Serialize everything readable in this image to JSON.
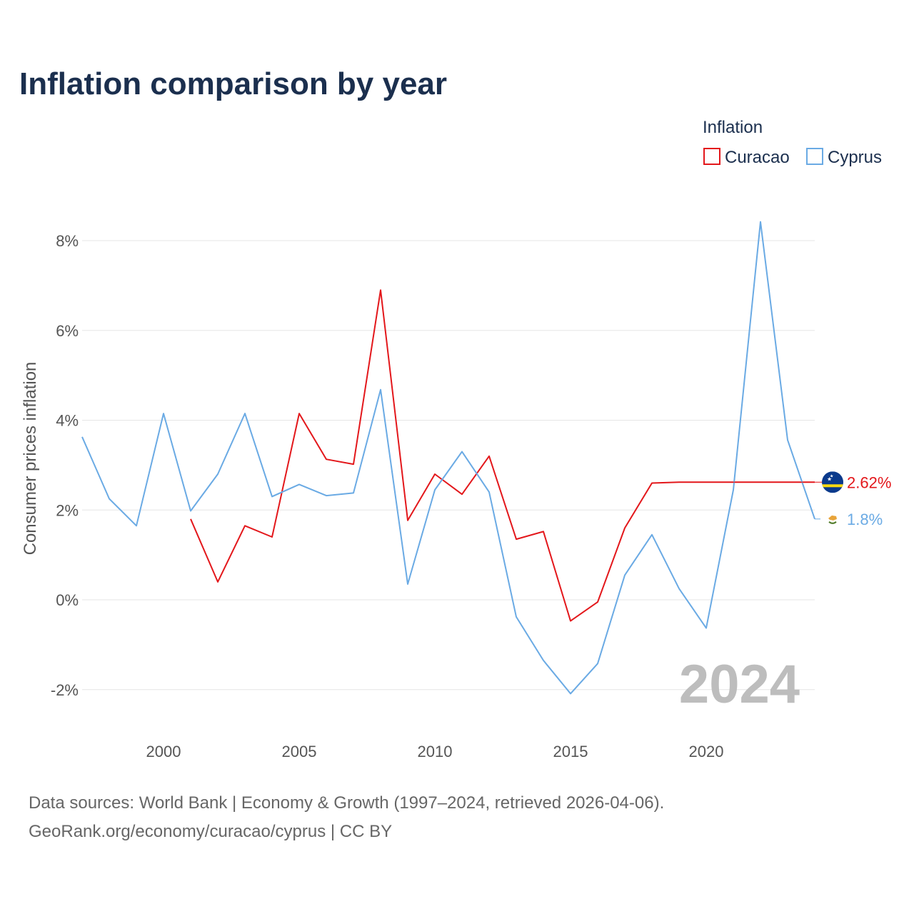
{
  "title": "Inflation comparison by year",
  "legend": {
    "title": "Inflation",
    "items": [
      {
        "name": "Curacao",
        "color": "#e3171b"
      },
      {
        "name": "Cyprus",
        "color": "#6aaae4"
      }
    ]
  },
  "year_watermark": "2024",
  "source_lines": [
    "Data sources: World Bank | Economy & Growth (1997–2024, retrieved 2026-04-06).",
    "GeoRank.org/economy/curacao/cyprus | CC BY"
  ],
  "end_labels": {
    "curacao": "2.62%",
    "cyprus": "1.8%"
  },
  "chart_data": {
    "type": "line",
    "title": "Inflation comparison by year",
    "xlabel": "",
    "ylabel": "Consumer prices inflation",
    "xlim": [
      1997,
      2024
    ],
    "ylim": [
      -3,
      9
    ],
    "y_ticks": [
      -2,
      0,
      2,
      4,
      6,
      8
    ],
    "y_tick_labels": [
      "-2%",
      "0%",
      "2%",
      "4%",
      "6%",
      "8%"
    ],
    "x_ticks": [
      2000,
      2005,
      2010,
      2015,
      2020
    ],
    "x_tick_labels": [
      "2000",
      "2005",
      "2010",
      "2015",
      "2020"
    ],
    "grid": true,
    "legend_position": "top-right",
    "series": [
      {
        "name": "Curacao",
        "color": "#e3171b",
        "points": [
          [
            2001,
            1.8
          ],
          [
            2002,
            0.4
          ],
          [
            2003,
            1.65
          ],
          [
            2004,
            1.4
          ],
          [
            2005,
            4.15
          ],
          [
            2006,
            3.13
          ],
          [
            2007,
            3.02
          ],
          [
            2008,
            6.9
          ],
          [
            2009,
            1.77
          ],
          [
            2010,
            2.8
          ],
          [
            2011,
            2.35
          ],
          [
            2012,
            3.2
          ],
          [
            2013,
            1.35
          ],
          [
            2014,
            1.52
          ],
          [
            2015,
            -0.47
          ],
          [
            2016,
            -0.05
          ],
          [
            2017,
            1.6
          ],
          [
            2018,
            2.6
          ],
          [
            2019,
            2.62
          ],
          [
            2024,
            2.62
          ]
        ],
        "end_value": 2.62
      },
      {
        "name": "Cyprus",
        "color": "#6aaae4",
        "points": [
          [
            1997,
            3.63
          ],
          [
            1998,
            2.25
          ],
          [
            1999,
            1.65
          ],
          [
            2000,
            4.15
          ],
          [
            2001,
            1.98
          ],
          [
            2002,
            2.8
          ],
          [
            2003,
            4.15
          ],
          [
            2004,
            2.3
          ],
          [
            2005,
            2.57
          ],
          [
            2006,
            2.32
          ],
          [
            2007,
            2.38
          ],
          [
            2008,
            4.68
          ],
          [
            2009,
            0.35
          ],
          [
            2010,
            2.45
          ],
          [
            2011,
            3.3
          ],
          [
            2012,
            2.4
          ],
          [
            2013,
            -0.38
          ],
          [
            2014,
            -1.35
          ],
          [
            2015,
            -2.09
          ],
          [
            2016,
            -1.42
          ],
          [
            2017,
            0.55
          ],
          [
            2018,
            1.45
          ],
          [
            2019,
            0.25
          ],
          [
            2020,
            -0.63
          ],
          [
            2021,
            2.45
          ],
          [
            2022,
            8.42
          ],
          [
            2023,
            3.56
          ],
          [
            2024,
            1.8
          ]
        ],
        "end_value": 1.8
      }
    ]
  }
}
